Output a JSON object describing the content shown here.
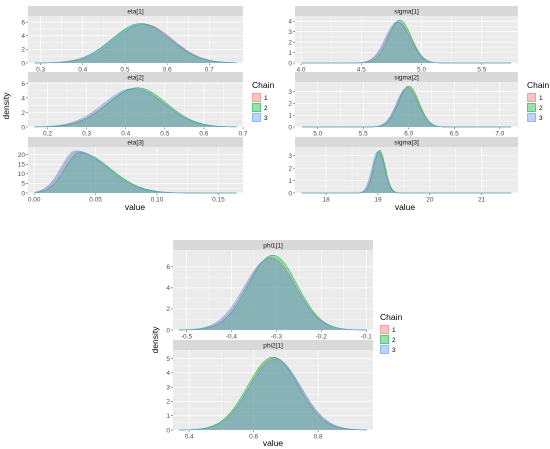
{
  "colors": {
    "chain1": "#F8766D",
    "chain2": "#00BA38",
    "chain3": "#619CFF",
    "panel_bg": "#EBEBEB",
    "strip_bg": "#D9D9D9",
    "grid": "#FFFFFF"
  },
  "chart_data": [
    {
      "type": "area",
      "xlabel": "value",
      "ylabel": "density",
      "legend": {
        "title": "Chain",
        "entries": [
          "1",
          "2",
          "3"
        ],
        "position": "right"
      },
      "facets": [
        {
          "strip": "eta[1]",
          "xlim": [
            0.27,
            0.78
          ],
          "ylim": [
            0,
            6.9
          ],
          "xticks": [
            0.3,
            0.4,
            0.5,
            0.6,
            0.7
          ],
          "xticklabels": [
            "0.3",
            "0.4",
            "0.5",
            "0.6",
            "0.7"
          ],
          "yticks": [
            0,
            2,
            4,
            6
          ],
          "yticklabels": [
            "0",
            "2",
            "4",
            "6"
          ],
          "show_xticks": true,
          "series": [
            {
              "name": "1",
              "mean": 0.545,
              "sd": 0.068,
              "peak": 5.7
            },
            {
              "name": "2",
              "mean": 0.538,
              "sd": 0.069,
              "peak": 5.8
            },
            {
              "name": "3",
              "mean": 0.54,
              "sd": 0.07,
              "peak": 5.65
            }
          ]
        },
        {
          "strip": "eta[2]",
          "xlim": [
            0.15,
            0.7
          ],
          "ylim": [
            0,
            6.2
          ],
          "xticks": [
            0.2,
            0.3,
            0.4,
            0.5,
            0.6,
            0.7
          ],
          "xticklabels": [
            "0.2",
            "0.3",
            "0.4",
            "0.5",
            "0.6",
            "0.7"
          ],
          "yticks": [
            0,
            2,
            4,
            6
          ],
          "yticklabels": [
            "0",
            "2",
            "4",
            "6"
          ],
          "show_xticks": true,
          "series": [
            {
              "name": "1",
              "mean": 0.425,
              "sd": 0.075,
              "peak": 5.25
            },
            {
              "name": "2",
              "mean": 0.43,
              "sd": 0.074,
              "peak": 5.4
            },
            {
              "name": "3",
              "mean": 0.42,
              "sd": 0.076,
              "peak": 5.3
            }
          ]
        },
        {
          "strip": "eta[3]",
          "xlim": [
            -0.005,
            0.17
          ],
          "ylim": [
            0,
            24
          ],
          "xticks": [
            0.0,
            0.05,
            0.1,
            0.15
          ],
          "xticklabels": [
            "0.00",
            "0.05",
            "0.10",
            "0.15"
          ],
          "yticks": [
            0,
            5,
            10,
            15,
            20
          ],
          "yticklabels": [
            "0",
            "5",
            "10",
            "15",
            "20"
          ],
          "show_xticks": true,
          "series": [
            {
              "name": "1",
              "mode": 0.035,
              "sdl": 0.012,
              "sdr": 0.025,
              "peak": 21.5
            },
            {
              "name": "2",
              "mode": 0.037,
              "sdl": 0.012,
              "sdr": 0.025,
              "peak": 21.0
            },
            {
              "name": "3",
              "mode": 0.034,
              "sdl": 0.012,
              "sdr": 0.025,
              "peak": 22.0
            }
          ]
        }
      ]
    },
    {
      "type": "area",
      "xlabel": "value",
      "ylabel": "",
      "legend": {
        "title": "Chain",
        "entries": [
          "1",
          "2",
          "3"
        ],
        "position": "right"
      },
      "facets": [
        {
          "strip": "sigma[1]",
          "xlim": [
            3.95,
            5.8
          ],
          "ylim": [
            0,
            4.5
          ],
          "xticks": [
            4.0,
            4.5,
            5.0,
            5.5
          ],
          "xticklabels": [
            "4.0",
            "4.5",
            "5.0",
            "5.5"
          ],
          "yticks": [
            0,
            1,
            2,
            3,
            4
          ],
          "yticklabels": [
            "0",
            "1",
            "2",
            "3",
            "4"
          ],
          "show_xticks": true,
          "series": [
            {
              "name": "1",
              "mean": 4.81,
              "sd": 0.1,
              "peak": 3.9
            },
            {
              "name": "2",
              "mean": 4.82,
              "sd": 0.095,
              "peak": 4.1
            },
            {
              "name": "3",
              "mean": 4.8,
              "sd": 0.1,
              "peak": 3.95
            }
          ]
        },
        {
          "strip": "sigma[2]",
          "xlim": [
            4.75,
            7.2
          ],
          "ylim": [
            0,
            3.8
          ],
          "xticks": [
            5.0,
            5.5,
            6.0,
            6.5,
            7.0
          ],
          "xticklabels": [
            "5.0",
            "5.5",
            "6.0",
            "6.5",
            "7.0"
          ],
          "yticks": [
            0,
            1,
            2,
            3
          ],
          "yticklabels": [
            "0",
            "1",
            "2",
            "3"
          ],
          "show_xticks": true,
          "series": [
            {
              "name": "1",
              "mean": 5.99,
              "sd": 0.115,
              "peak": 3.35
            },
            {
              "name": "2",
              "mean": 6.0,
              "sd": 0.112,
              "peak": 3.45
            },
            {
              "name": "3",
              "mean": 5.98,
              "sd": 0.115,
              "peak": 3.3
            }
          ]
        },
        {
          "strip": "sigma[3]",
          "xlim": [
            17.4,
            21.7
          ],
          "ylim": [
            0,
            3.7
          ],
          "xticks": [
            18,
            19,
            20,
            21
          ],
          "xticklabels": [
            "18",
            "19",
            "20",
            "21"
          ],
          "yticks": [
            0,
            1,
            2,
            3
          ],
          "yticklabels": [
            "0",
            "1",
            "2",
            "3"
          ],
          "show_xticks": true,
          "series": [
            {
              "name": "1",
              "mean": 19.02,
              "sd": 0.115,
              "peak": 3.3
            },
            {
              "name": "2",
              "mean": 19.03,
              "sd": 0.11,
              "peak": 3.45
            },
            {
              "name": "3",
              "mean": 19.0,
              "sd": 0.115,
              "peak": 3.35
            }
          ]
        }
      ]
    },
    {
      "type": "area",
      "xlabel": "value",
      "ylabel": "density",
      "legend": {
        "title": "Chain",
        "entries": [
          "1",
          "2",
          "3"
        ],
        "position": "right"
      },
      "facets": [
        {
          "strip": "phi1[1]",
          "xlim": [
            -0.53,
            -0.085
          ],
          "ylim": [
            0,
            7.6
          ],
          "xticks": [
            -0.5,
            -0.4,
            -0.3,
            -0.2,
            -0.1
          ],
          "xticklabels": [
            "-0.5",
            "-0.4",
            "-0.3",
            "-0.2",
            "-0.1"
          ],
          "yticks": [
            0,
            2,
            4,
            6
          ],
          "yticklabels": [
            "0",
            "2",
            "4",
            "6"
          ],
          "show_xticks": true,
          "series": [
            {
              "name": "1",
              "mean": -0.312,
              "sd": 0.055,
              "peak": 6.9
            },
            {
              "name": "2",
              "mean": -0.308,
              "sd": 0.054,
              "peak": 7.1
            },
            {
              "name": "3",
              "mean": -0.315,
              "sd": 0.056,
              "peak": 6.8
            }
          ]
        },
        {
          "strip": "phi2[1]",
          "xlim": [
            0.35,
            0.97
          ],
          "ylim": [
            0,
            5.6
          ],
          "xticks": [
            0.4,
            0.6,
            0.8
          ],
          "xticklabels": [
            "0.4",
            "0.6",
            "0.8"
          ],
          "yticks": [
            0,
            1,
            2,
            3,
            4,
            5
          ],
          "yticklabels": [
            "0",
            "1",
            "2",
            "3",
            "4",
            "5"
          ],
          "show_xticks": true,
          "series": [
            {
              "name": "1",
              "mean": 0.665,
              "sd": 0.078,
              "peak": 5.05
            },
            {
              "name": "2",
              "mean": 0.66,
              "sd": 0.078,
              "peak": 5.1
            },
            {
              "name": "3",
              "mean": 0.668,
              "sd": 0.079,
              "peak": 4.95
            }
          ]
        }
      ]
    }
  ]
}
